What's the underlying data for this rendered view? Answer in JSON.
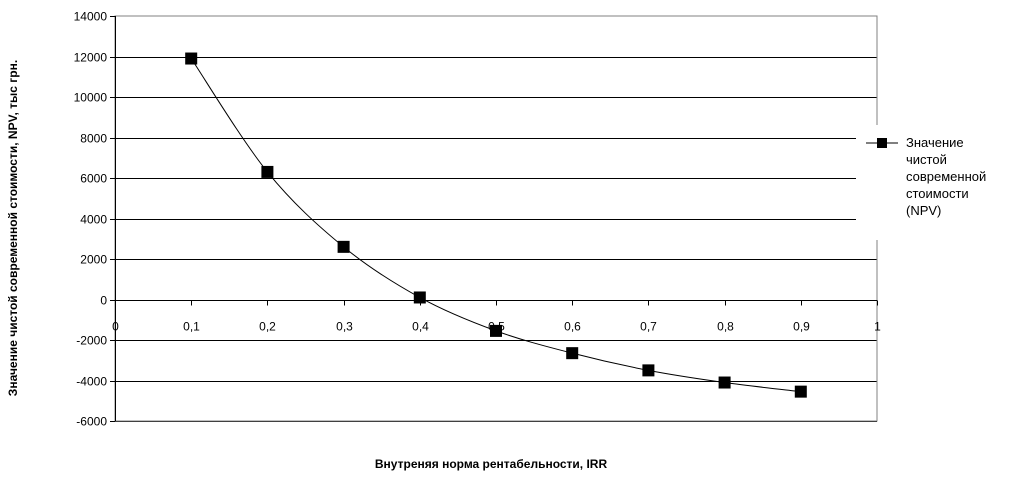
{
  "chart_data": {
    "type": "line",
    "title": "",
    "xlabel": "Внутреняя норма рентабельности, IRR",
    "ylabel": "Значение чистой современной стоимости, NPV, тыс грн.",
    "xlim": [
      0,
      1
    ],
    "ylim": [
      -6000,
      14000
    ],
    "x_ticks": [
      "0",
      "0,1",
      "0,2",
      "0,3",
      "0,4",
      "0,5",
      "0,6",
      "0,7",
      "0,8",
      "0,9",
      "1"
    ],
    "x_tick_values": [
      0,
      0.1,
      0.2,
      0.3,
      0.4,
      0.5,
      0.6,
      0.7,
      0.8,
      0.9,
      1
    ],
    "y_ticks": [
      "14000",
      "12000",
      "10000",
      "8000",
      "6000",
      "4000",
      "2000",
      "0",
      "-2000",
      "-4000",
      "-6000"
    ],
    "y_tick_values": [
      14000,
      12000,
      10000,
      8000,
      6000,
      4000,
      2000,
      0,
      -2000,
      -4000,
      -6000
    ],
    "grid": "horizontal",
    "legend_position": "right",
    "legend_lines": [
      "Значение",
      "чистой",
      "современной",
      "стоимости",
      "(NPV)"
    ],
    "series": [
      {
        "name": "Значение чистой современной стоимости (NPV)",
        "marker": "square",
        "smooth": true,
        "color": "#000000",
        "x": [
          0.1,
          0.2,
          0.3,
          0.4,
          0.5,
          0.6,
          0.7,
          0.8,
          0.9
        ],
        "values": [
          11900,
          6300,
          2600,
          100,
          -1550,
          -2650,
          -3500,
          -4100,
          -4550
        ]
      }
    ]
  }
}
